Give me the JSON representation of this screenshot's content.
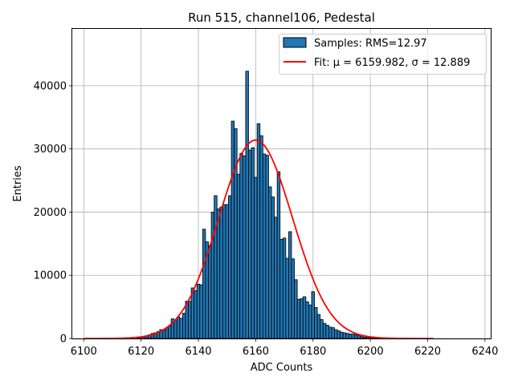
{
  "chart_data": {
    "type": "bar",
    "title": "Run 515, channel106, Pedestal",
    "xlabel": "ADC Counts",
    "ylabel": "Entries",
    "xlim": [
      6096,
      6242
    ],
    "ylim": [
      0,
      49000
    ],
    "xticks": [
      6100,
      6120,
      6140,
      6160,
      6180,
      6200,
      6220,
      6240
    ],
    "yticks": [
      0,
      10000,
      20000,
      30000,
      40000
    ],
    "grid": true,
    "legend_position": "top-right",
    "bin_width": 1,
    "histogram": {
      "name": "Samples: RMS=12.97",
      "color": "#1f77b4",
      "x": [
        6119,
        6120,
        6121,
        6122,
        6123,
        6124,
        6125,
        6126,
        6127,
        6128,
        6129,
        6130,
        6131,
        6132,
        6133,
        6134,
        6135,
        6136,
        6137,
        6138,
        6139,
        6140,
        6141,
        6142,
        6143,
        6144,
        6145,
        6146,
        6147,
        6148,
        6149,
        6150,
        6151,
        6152,
        6153,
        6154,
        6155,
        6156,
        6157,
        6158,
        6159,
        6160,
        6161,
        6162,
        6163,
        6164,
        6165,
        6166,
        6167,
        6168,
        6169,
        6170,
        6171,
        6172,
        6173,
        6174,
        6175,
        6176,
        6177,
        6178,
        6179,
        6180,
        6181,
        6182,
        6183,
        6184,
        6185,
        6186,
        6187,
        6188,
        6189,
        6190,
        6191,
        6192,
        6193,
        6194,
        6195,
        6196,
        6197,
        6198,
        6199,
        6200,
        6201,
        6202
      ],
      "y": [
        100,
        200,
        300,
        400,
        600,
        800,
        900,
        1100,
        1400,
        1300,
        1700,
        2000,
        3100,
        2800,
        3400,
        3200,
        4000,
        5900,
        5900,
        8000,
        7600,
        8600,
        8500,
        17300,
        15300,
        14700,
        20000,
        22600,
        20500,
        20800,
        21200,
        21200,
        22600,
        34400,
        33200,
        26000,
        29300,
        28900,
        42300,
        29800,
        30200,
        25500,
        34000,
        32100,
        29200,
        29000,
        24000,
        22400,
        19200,
        26400,
        15700,
        15900,
        12700,
        16900,
        12600,
        9300,
        6200,
        6300,
        6600,
        5800,
        5300,
        7400,
        4900,
        3800,
        3000,
        2400,
        2100,
        1800,
        1700,
        1400,
        1200,
        1000,
        900,
        800,
        700,
        700,
        600,
        500,
        300,
        200,
        200,
        100,
        100,
        50
      ]
    },
    "fit": {
      "name": "Fit: μ = 6159.982, σ = 12.889",
      "color": "#ff0000",
      "mu": 6159.982,
      "sigma": 12.889,
      "amplitude": 31400,
      "x_range": [
        6100,
        6222
      ]
    }
  }
}
